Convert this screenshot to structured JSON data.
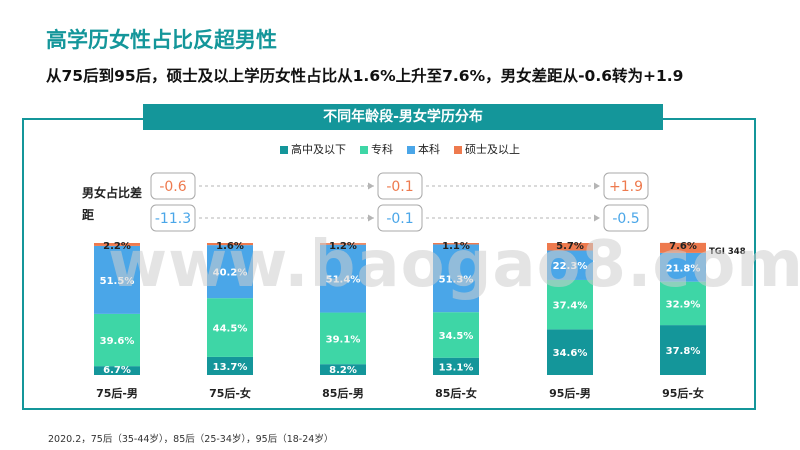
{
  "header": {
    "title": "高学历女性占比反超男性",
    "subtitle": "从75后到95后，硕士及以上学历女性占比从1.6%上升至7.6%，男女差距从-0.6转为+1.9"
  },
  "panel_title": "不同年龄段-男女学历分布",
  "gap_label": "男女占比差距",
  "tgi_label": "TGI 348",
  "footnote": "2020.2，75后（35-44岁），85后（25-34岁），95后（18-24岁）",
  "watermark": "www.baogao8.com",
  "colors": {
    "高中及以下": "#14969a",
    "专科": "#3ed6a6",
    "本科": "#4aa6e8",
    "硕士及以上": "#ee7a4e"
  },
  "gaps": [
    {
      "group": "75后",
      "top": "-0.6",
      "top_color": "#ee7a4e",
      "bottom": "-11.3",
      "bottom_color": "#4aa6e8"
    },
    {
      "group": "85后",
      "top": "-0.1",
      "top_color": "#ee7a4e",
      "bottom": "-0.1",
      "bottom_color": "#4aa6e8"
    },
    {
      "group": "95后",
      "top": "+1.9",
      "top_color": "#ee7a4e",
      "bottom": "-0.5",
      "bottom_color": "#4aa6e8"
    }
  ],
  "chart_data": {
    "type": "bar",
    "stacked": true,
    "title": "不同年龄段-男女学历分布",
    "categories": [
      "75后-男",
      "75后-女",
      "85后-男",
      "85后-女",
      "95后-男",
      "95后-女"
    ],
    "series": [
      {
        "name": "高中及以下",
        "values": [
          6.7,
          13.7,
          8.2,
          13.1,
          34.6,
          37.8
        ]
      },
      {
        "name": "专科",
        "values": [
          39.6,
          44.5,
          39.1,
          34.5,
          37.4,
          32.9
        ]
      },
      {
        "name": "本科",
        "values": [
          51.5,
          40.2,
          51.4,
          51.3,
          22.3,
          21.8
        ]
      },
      {
        "name": "硕士及以上",
        "values": [
          2.2,
          1.6,
          1.2,
          1.1,
          5.7,
          7.6
        ]
      }
    ],
    "value_labels": [
      [
        "6.7%",
        "13.7%",
        "8.2%",
        "13.1%",
        "34.6%",
        "37.8%"
      ],
      [
        "39.6%",
        "44.5%",
        "39.1%",
        "34.5%",
        "37.4%",
        "32.9%"
      ],
      [
        "51.5%",
        "40.2%",
        "51.4%",
        "51.3%",
        "22.3%",
        "21.8%"
      ],
      [
        "2.2%",
        "1.6%",
        "1.2%",
        "1.1%",
        "5.7%",
        "7.6%"
      ]
    ],
    "ylim": [
      0,
      100
    ],
    "legend_position": "top-center"
  }
}
